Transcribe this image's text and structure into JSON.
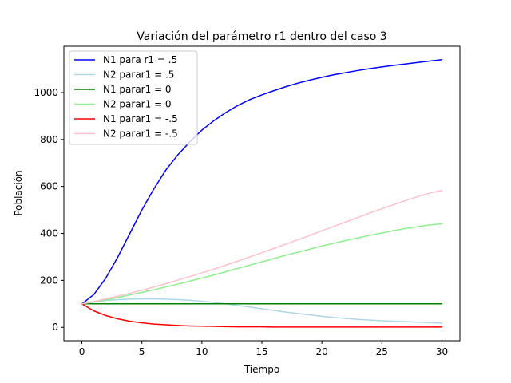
{
  "chart_data": {
    "type": "line",
    "title": "Variación del parámetro r1 dentro del caso 3",
    "xlabel": "Tiempo",
    "ylabel": "Población",
    "xlim": [
      -1.5,
      31.5
    ],
    "ylim": [
      -57,
      1197
    ],
    "xticks": [
      0,
      5,
      10,
      15,
      20,
      25,
      30
    ],
    "yticks": [
      0,
      200,
      400,
      600,
      800,
      1000
    ],
    "grid": false,
    "legend": "top-left",
    "x": [
      0,
      1,
      2,
      3,
      4,
      5,
      6,
      7,
      8,
      9,
      10,
      11,
      12,
      13,
      14,
      15,
      16,
      17,
      18,
      19,
      20,
      21,
      22,
      23,
      24,
      25,
      26,
      27,
      28,
      29,
      30
    ],
    "series": [
      {
        "name": "N1 para r1 = .5",
        "color": "#0000ff",
        "values": [
          100,
          140,
          210,
          300,
          400,
          500,
          590,
          670,
          735,
          790,
          840,
          880,
          915,
          945,
          970,
          990,
          1008,
          1025,
          1040,
          1053,
          1065,
          1076,
          1085,
          1094,
          1102,
          1109,
          1116,
          1122,
          1128,
          1134,
          1140
        ]
      },
      {
        "name": "N2 parar1 = .5",
        "color": "#add8e6",
        "values": [
          100,
          108,
          114,
          118,
          120,
          121,
          121,
          120,
          118,
          115,
          111,
          106,
          100,
          93,
          86,
          79,
          72,
          65,
          59,
          53,
          47,
          42,
          38,
          34,
          31,
          28,
          26,
          24,
          22,
          20,
          18
        ]
      },
      {
        "name": "N1 parar1 = 0",
        "color": "#008000",
        "values": [
          100,
          100,
          100,
          100,
          100,
          100,
          100,
          100,
          100,
          100,
          100,
          100,
          100,
          100,
          100,
          100,
          100,
          100,
          100,
          100,
          100,
          100,
          100,
          100,
          100,
          100,
          100,
          100,
          100,
          100,
          100
        ]
      },
      {
        "name": "N2 parar1 = 0",
        "color": "#90ee90",
        "values": [
          100,
          108,
          117,
          127,
          138,
          149,
          160,
          172,
          184,
          197,
          210,
          223,
          237,
          251,
          265,
          279,
          293,
          307,
          320,
          333,
          346,
          358,
          370,
          381,
          392,
          402,
          412,
          421,
          429,
          436,
          441
        ]
      },
      {
        "name": "N1 parar1 = -.5",
        "color": "#ff0000",
        "values": [
          100,
          70,
          50,
          36,
          26,
          19,
          14,
          11,
          8,
          6,
          5,
          4,
          3,
          2,
          2,
          2,
          1,
          1,
          1,
          1,
          1,
          1,
          1,
          1,
          1,
          1,
          1,
          1,
          1,
          1,
          1
        ]
      },
      {
        "name": "N2 parar1 = -.5",
        "color": "#ffc0cb",
        "values": [
          100,
          110,
          121,
          133,
          145,
          158,
          172,
          186,
          201,
          216,
          232,
          248,
          265,
          282,
          300,
          318,
          336,
          354,
          373,
          392,
          411,
          430,
          449,
          468,
          487,
          505,
          523,
          540,
          557,
          572,
          583
        ]
      }
    ]
  }
}
